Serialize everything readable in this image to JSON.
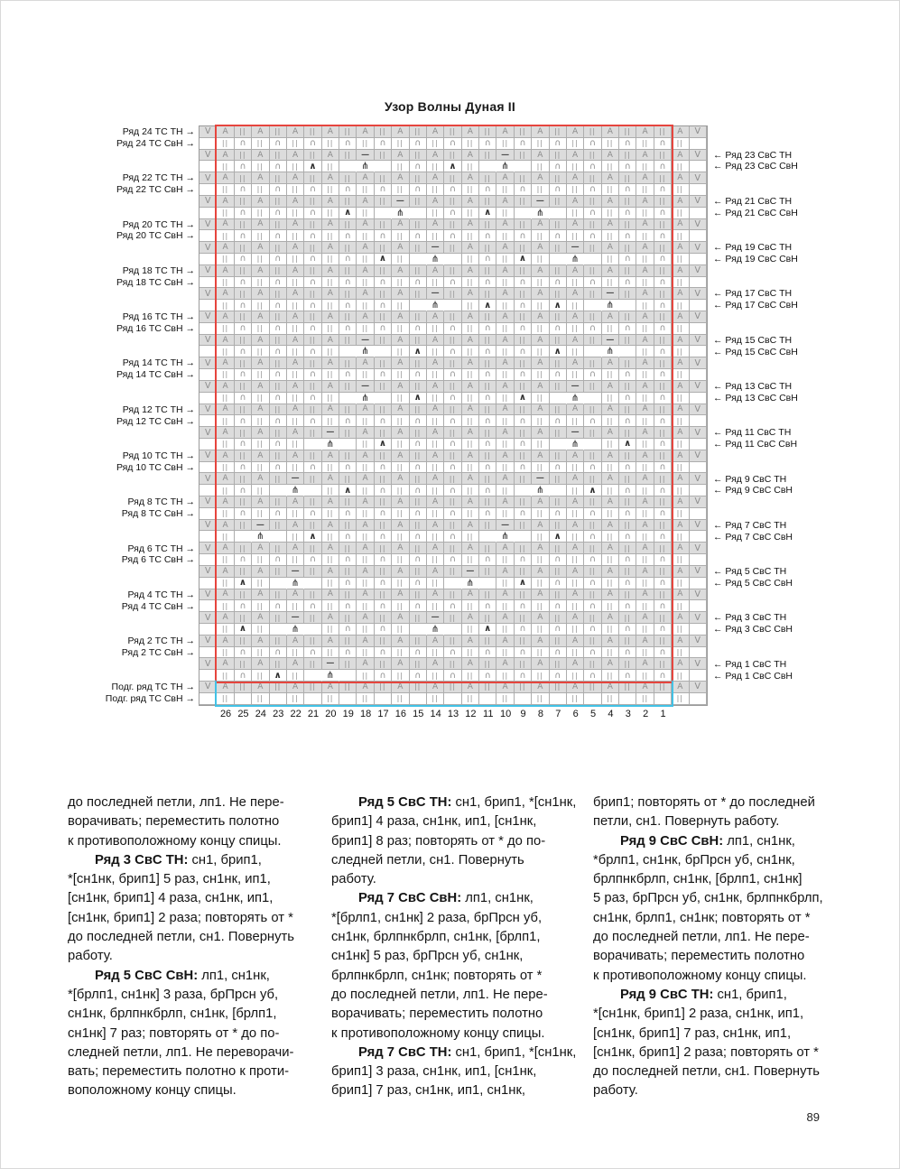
{
  "title": "Узор Волны Дуная II",
  "page_number": "89",
  "chart": {
    "columns": [
      "26",
      "25",
      "24",
      "23",
      "22",
      "21",
      "20",
      "19",
      "18",
      "17",
      "16",
      "15",
      "14",
      "13",
      "12",
      "11",
      "10",
      "9",
      "8",
      "7",
      "6",
      "5",
      "4",
      "3",
      "2",
      "1"
    ],
    "left_labels": [
      {
        "line": 0,
        "t1": "Ряд 24 ТС ТН →",
        "t2": "Ряд 24 ТС СвН →"
      },
      {
        "line": 4,
        "t1": "Ряд 22 ТС ТН →",
        "t2": "Ряд 22 ТС СвН →"
      },
      {
        "line": 8,
        "t1": "Ряд 20 ТС ТН →",
        "t2": "Ряд 20 ТС СвН →"
      },
      {
        "line": 12,
        "t1": "Ряд 18 ТС ТН →",
        "t2": "Ряд 18 ТС СвН →"
      },
      {
        "line": 16,
        "t1": "Ряд 16 ТС ТН →",
        "t2": "Ряд 16 ТС СвН →"
      },
      {
        "line": 20,
        "t1": "Ряд 14 ТС ТН →",
        "t2": "Ряд 14 ТС СвН →"
      },
      {
        "line": 24,
        "t1": "Ряд 12 ТС ТН →",
        "t2": "Ряд 12 ТС СвН →"
      },
      {
        "line": 28,
        "t1": "Ряд 10 ТС ТН →",
        "t2": "Ряд 10 ТС СвН →"
      },
      {
        "line": 32,
        "t1": "Ряд 8 ТС ТН →",
        "t2": "Ряд 8 ТС СвН →"
      },
      {
        "line": 36,
        "t1": "Ряд 6 ТС ТН →",
        "t2": "Ряд 6 ТС СвН →"
      },
      {
        "line": 40,
        "t1": "Ряд 4 ТС ТН →",
        "t2": "Ряд 4 ТС СвН →"
      },
      {
        "line": 44,
        "t1": "Ряд 2 ТС ТН →",
        "t2": "Ряд 2 ТС СвН →"
      },
      {
        "line": 48,
        "t1": "Подг. ряд ТС ТН →",
        "t2": "Подг. ряд ТС СвН →"
      }
    ],
    "right_labels": [
      {
        "line": 2,
        "t1": "← Ряд 23 СвС ТН",
        "t2": "← Ряд 23 СвС СвН"
      },
      {
        "line": 6,
        "t1": "← Ряд 21 СвС ТН",
        "t2": "← Ряд 21 СвС СвН"
      },
      {
        "line": 10,
        "t1": "← Ряд 19 СвС ТН",
        "t2": "← Ряд 19 СвС СвН"
      },
      {
        "line": 14,
        "t1": "← Ряд 17 СвС ТН",
        "t2": "← Ряд 17 СвС СвН"
      },
      {
        "line": 18,
        "t1": "← Ряд 15 СвС ТН",
        "t2": "← Ряд 15 СвС СвН"
      },
      {
        "line": 22,
        "t1": "← Ряд 13 СвС ТН",
        "t2": "← Ряд 13 СвС СвН"
      },
      {
        "line": 26,
        "t1": "← Ряд 11 СвС ТН",
        "t2": "← Ряд 11 СвС СвН"
      },
      {
        "line": 30,
        "t1": "← Ряд 9 СвС ТН",
        "t2": "← Ряд 9 СвС СвН"
      },
      {
        "line": 34,
        "t1": "← Ряд 7 СвС ТН",
        "t2": "← Ряд 7 СвС СвН"
      },
      {
        "line": 38,
        "t1": "← Ряд 5 СвС ТН",
        "t2": "← Ряд 5 СвС СвН"
      },
      {
        "line": 42,
        "t1": "← Ряд 3 СвС ТН",
        "t2": "← Ряд 3 СвС СвН"
      },
      {
        "line": 46,
        "t1": "← Ряд 1 СвС ТН",
        "t2": "← Ряд 1 СвС СвН"
      }
    ],
    "symbols": {
      "V": "V",
      "A": "A",
      "I": "||",
      "n": "∩",
      "D": "—",
      "X": "∧",
      "M": "⋔",
      ".": ""
    },
    "colors": {
      "repeat_box": "#e6453e",
      "setup_box": "#42c2e6",
      "cell_shaded": "#dcdcdc",
      "grid_line": "#adadad",
      "symbol": "#8b8b8b",
      "symbol_dark": "#2c2c2c"
    },
    "rows": [
      "VAIAIAIAIAIAIAIAIAIAIAIAIAIAV",
      ".InInInInInInInInInInInInInI.",
      "VAIAIAIAIDIAIAIAIDIAIAIAIAIAV",
      ".InInIXI.M.InIXI.M.InInInInI.",
      "VAIAIAIAIAIAIAIAIAIAIAIAIAIAV",
      ".InInInInInInInInInInInInInI.",
      "VAIAIAIAIAIDIAIAIAIDIAIAIAIAV",
      ".InInInIXI.M.InIXI.M.InInInI.",
      "VAIAIAIAIAIAIAIAIAIAIAIAIAIAV",
      ".InInInInInInInInInInInInInI.",
      "VAIAIAIAIAIAIDIAIAIAIDIAIAIAV",
      ".InInInInIXI.M.InIXI.M.InInI.",
      "VAIAIAIAIAIAIAIAIAIAIAIAIAIAV",
      ".InInInInInInInInInInInInInI.",
      "VAIAIAIAIAIAIDIAIAIAIAIDIAIAV",
      ".InInInInInI.M.IXInIXI.M.InI.",
      "VAIAIAIAIAIAIAIAIAIAIAIAIAIAV",
      ".InInInInInInInInInInInInInI.",
      "VAIAIAIAIDIAIAIAIAIAIAIDIAIAV",
      ".InInInI.M.IXInInInIXI.M.InI.",
      "VAIAIAIAIAIAIAIAIAIAIAIAIAIAV",
      ".InInInInInInInInInInInInInI.",
      "VAIAIAIAIDIAIAIAIAIAIDIAIAIAV",
      ".InInInI.M.IXInInIXI.M.InInI.",
      "VAIAIAIAIAIAIAIAIAIAIAIAIAIAV",
      ".InInInInInInInInInInInInInI.",
      "VAIAIAIDIAIAIAIAIAIAIDIAIAIAV",
      ".InInI.M.IXInInInInI.M.IXInI.",
      "VAIAIAIAIAIAIAIAIAIAIAIAIAIAV",
      ".InInInInInInInInInInInInInI.",
      "VAIAIDIAIAIAIAIAIAIDIAIAIAIAV",
      ".InI.M.IXInInInInI.M.IXInInI.",
      "VAIAIAIAIAIAIAIAIAIAIAIAIAIAV",
      ".InInInInInInInInInInInInInI.",
      "VAIDIAIAIAIAIAIAIDIAIAIAIAIAV",
      ".I.M.IXInInInInI.M.IXInInInI.",
      "VAIAIAIAIAIAIAIAIAIAIAIAIAIAV",
      ".InInInInInInInInInInInInInI.",
      "VAIAIDIAIAIAIAIDIAIAIAIAIAIAV",
      ".IXI.M.InInInI.M.IXInInInInI.",
      "VAIAIAIAIAIAIAIAIAIAIAIAIAIAV",
      ".InInInInInInInInInInInInInI.",
      "VAIAIDIAIAIAIDIAIAIAIAIAIAIAV",
      ".IXI.M.InInI.M.IXInInInInInI.",
      "VAIAIAIAIAIAIAIAIAIAIAIAIAIAV",
      ".InInInInInInInInInInInInInI.",
      "VAIAIAIDIAIAIAIAIAIAIAIAIAIAV",
      ".InIXI.M.InInInInInInInInInI.",
      "VAIAIAIAIAIAIAIAIAIAIAIAIAIAV",
      ".I.I.I.I.I.I.I.I.I.I.I.I.I.I."
    ]
  },
  "text_columns": [
    [
      {
        "t": "до последней петли, лп1. Не пере-"
      },
      {
        "t": "ворачивать; переместить полотно"
      },
      {
        "t": "к противоположному концу спицы."
      },
      {
        "b": "Ряд 3 СвС ТН:",
        "t": " сн1, брип1,",
        "ind": true
      },
      {
        "t": "*[сн1нк, брип1] 5 раз, сн1нк, ип1,"
      },
      {
        "t": "[сн1нк, брип1] 4 раза, сн1нк, ип1,"
      },
      {
        "t": "[сн1нк, брип1] 2 раза; повторять от *"
      },
      {
        "t": "до последней петли, сн1. Повернуть"
      },
      {
        "t": "работу."
      },
      {
        "b": "Ряд 5 СвС СвН:",
        "t": " лп1, сн1нк,",
        "ind": true
      },
      {
        "t": "*[брлп1, сн1нк] 3 раза, брПрсн уб,"
      },
      {
        "t": "сн1нк, брлпнкбрлп, сн1нк, [брлп1,"
      },
      {
        "t": "сн1нк] 7 раз; повторять от * до по-"
      },
      {
        "t": "следней петли, лп1. Не переворачи-"
      },
      {
        "t": "вать; переместить полотно к проти-"
      },
      {
        "t": "воположному концу спицы."
      }
    ],
    [
      {
        "b": "Ряд 5 СвС ТН:",
        "t": " сн1, брип1, *[сн1нк,",
        "ind": true
      },
      {
        "t": "брип1] 4 раза, сн1нк, ип1, [сн1нк,"
      },
      {
        "t": "брип1] 8 раз; повторять от * до по-"
      },
      {
        "t": "следней петли, сн1. Повернуть"
      },
      {
        "t": "работу."
      },
      {
        "b": "Ряд 7 СвС СвН:",
        "t": " лп1, сн1нк,",
        "ind": true
      },
      {
        "t": "*[брлп1, сн1нк] 2 раза, брПрсн уб,"
      },
      {
        "t": "сн1нк, брлпнкбрлп, сн1нк, [брлп1,"
      },
      {
        "t": "сн1нк] 5 раз, брПрсн уб, сн1нк,"
      },
      {
        "t": "брлпнкбрлп, сн1нк; повторять от *"
      },
      {
        "t": "до последней петли, лп1. Не пере-"
      },
      {
        "t": "ворачивать; переместить полотно"
      },
      {
        "t": "к противоположному концу спицы."
      },
      {
        "b": "Ряд 7 СвС ТН:",
        "t": " сн1, брип1, *[сн1нк,",
        "ind": true
      },
      {
        "t": "брип1] 3 раза, сн1нк, ип1, [сн1нк,"
      },
      {
        "t": "брип1] 7 раз, сн1нк, ип1, сн1нк,"
      }
    ],
    [
      {
        "t": "брип1; повторять от * до последней"
      },
      {
        "t": "петли, сн1. Повернуть работу."
      },
      {
        "b": "Ряд 9 СвС СвН:",
        "t": " лп1, сн1нк,",
        "ind": true
      },
      {
        "t": "*брлп1, сн1нк, брПрсн уб, сн1нк,"
      },
      {
        "t": "брлпнкбрлп, сн1нк, [брлп1, сн1нк]"
      },
      {
        "t": "5 раз, брПрсн уб, сн1нк, брлпнкбрлп,"
      },
      {
        "t": "сн1нк, брлп1, сн1нк; повторять от *"
      },
      {
        "t": "до последней петли, лп1. Не пере-"
      },
      {
        "t": "ворачивать; переместить полотно"
      },
      {
        "t": "к противоположному концу спицы."
      },
      {
        "b": "Ряд 9 СвС ТН:",
        "t": " сн1, брип1,",
        "ind": true
      },
      {
        "t": "*[сн1нк, брип1] 2 раза, сн1нк, ип1,"
      },
      {
        "t": "[сн1нк, брип1] 7 раз, сн1нк, ип1,"
      },
      {
        "t": "[сн1нк, брип1] 2 раза; повторять от *"
      },
      {
        "t": "до последней петли, сн1. Повернуть"
      },
      {
        "t": "работу."
      }
    ]
  ]
}
